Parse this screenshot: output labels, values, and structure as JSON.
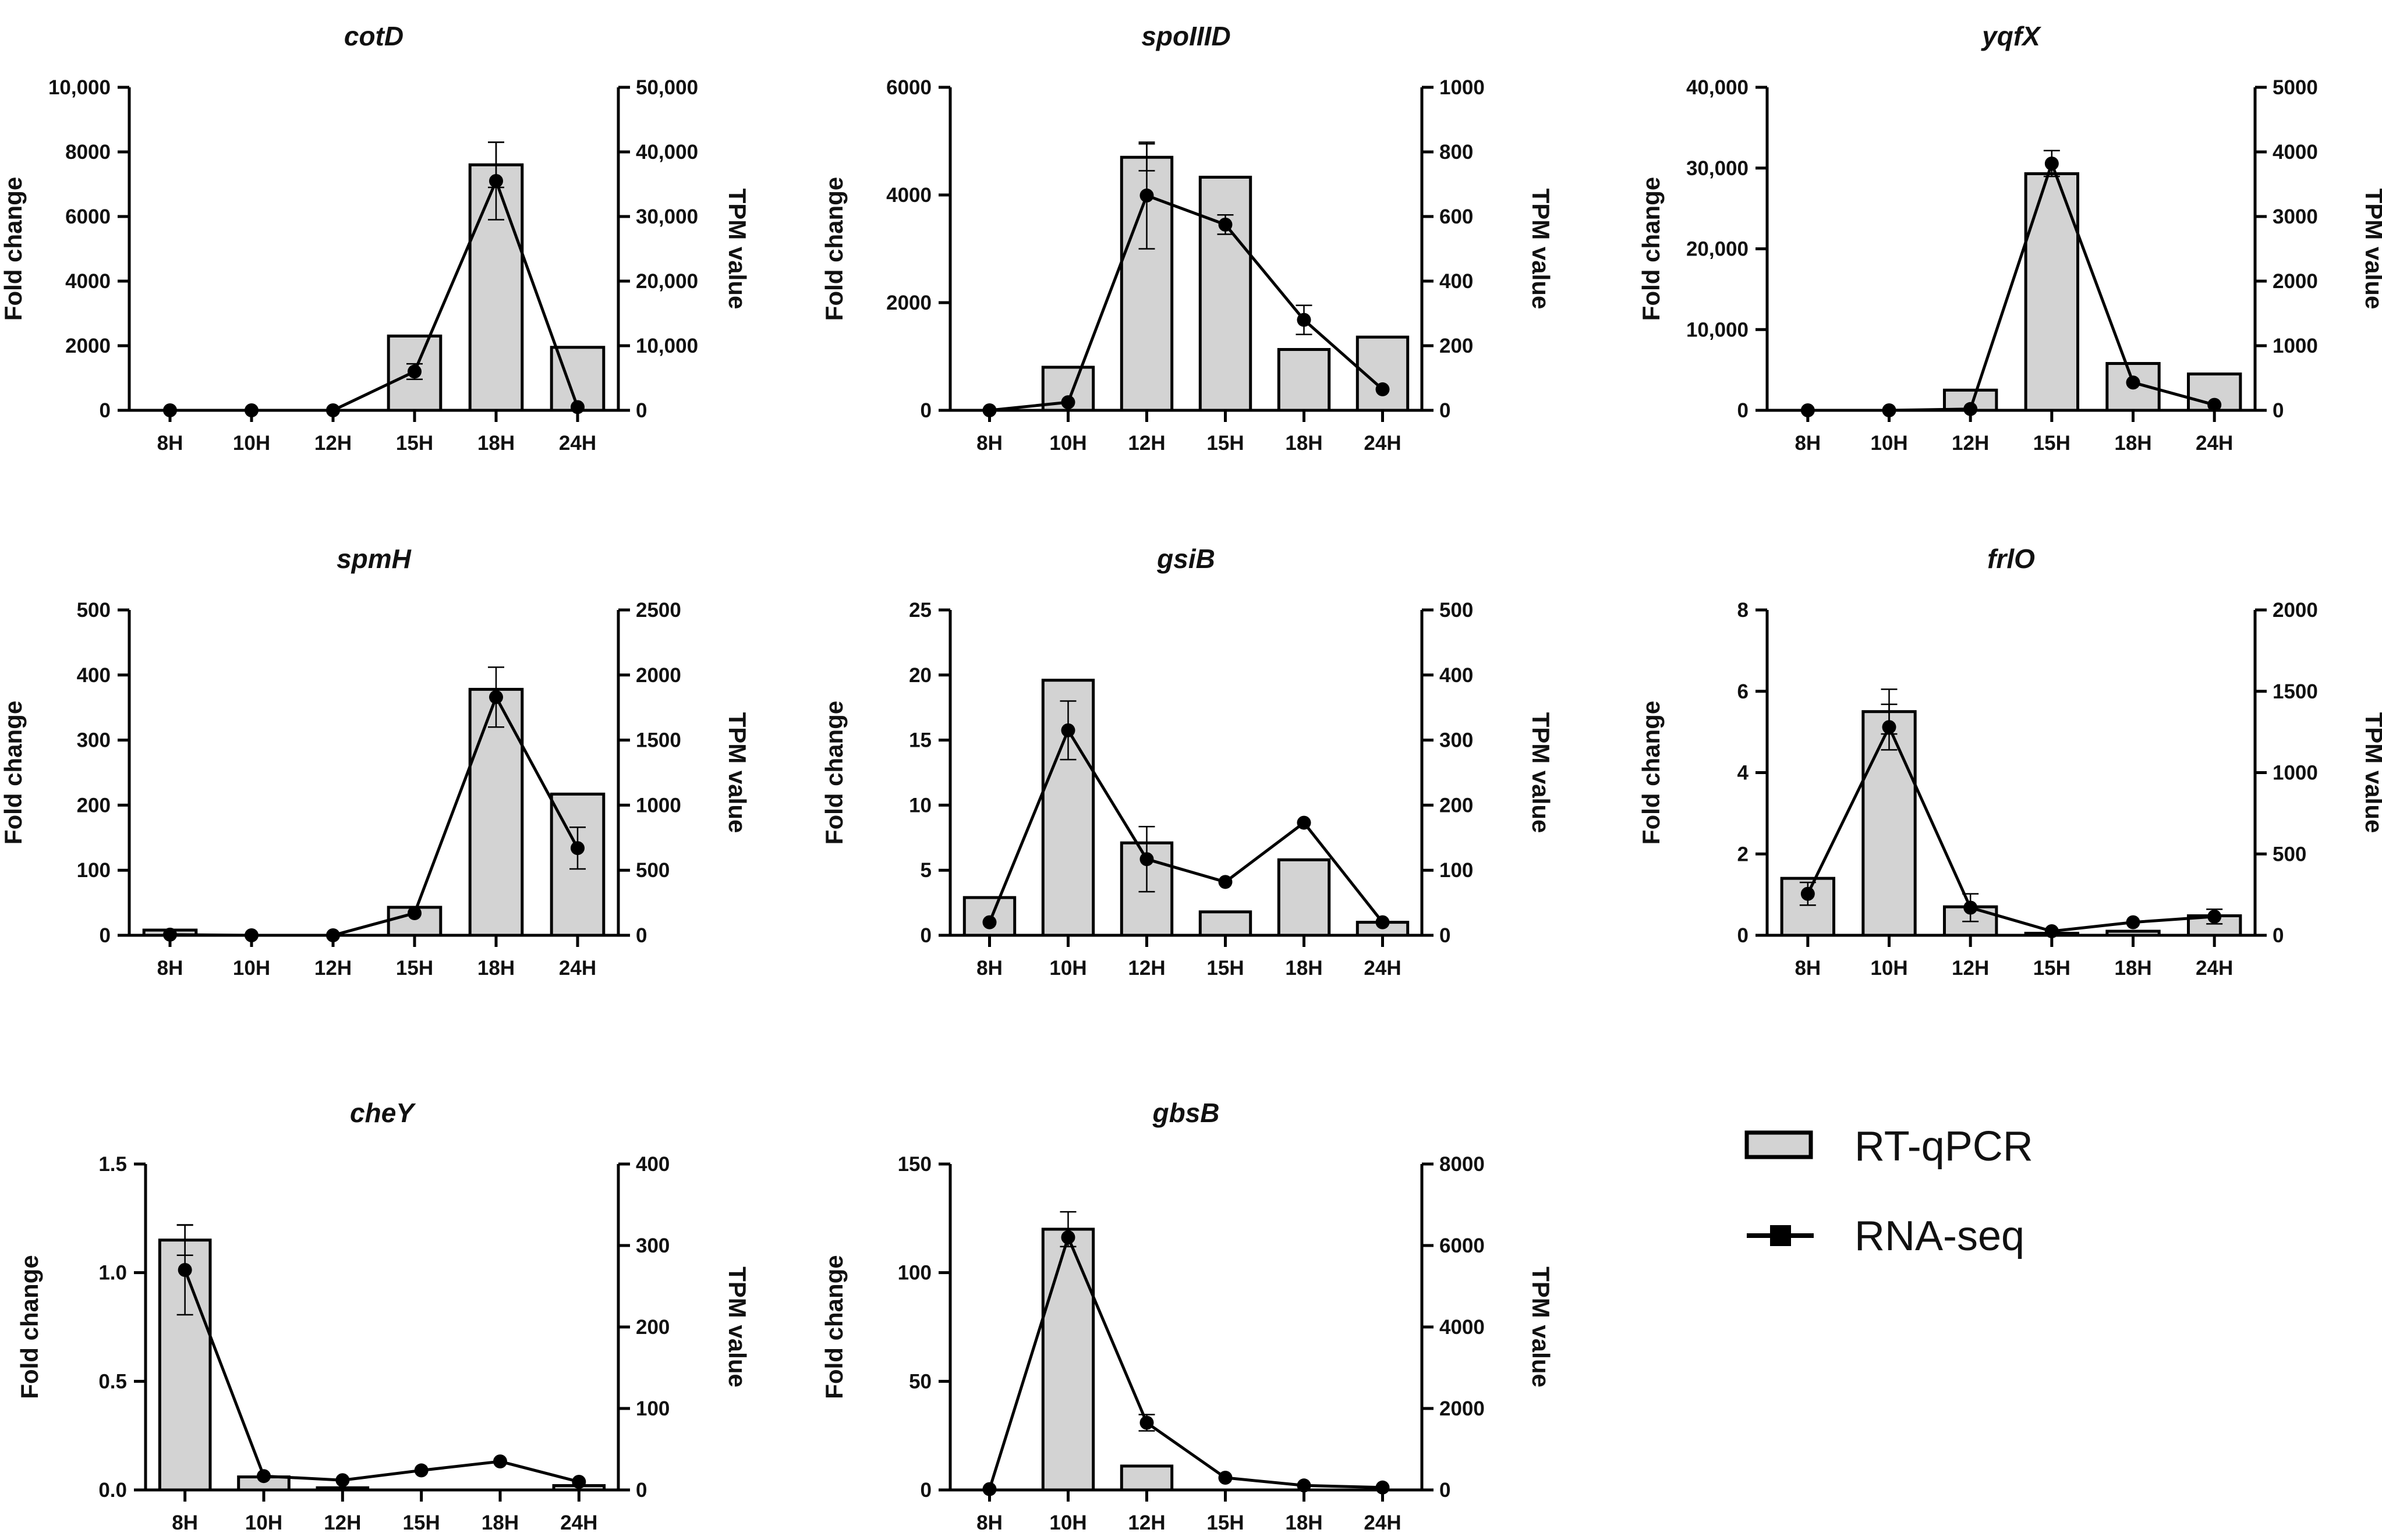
{
  "legend": {
    "bar_label": "RT-qPCR",
    "line_label": "RNA-seq"
  },
  "colors": {
    "bar_fill": "#d3d3d3",
    "stroke": "#000000",
    "line": "#000000"
  },
  "chart_data": [
    {
      "type": "bar+line",
      "title": "cotD",
      "categories": [
        "8H",
        "10H",
        "12H",
        "15H",
        "18H",
        "24H"
      ],
      "xlabel": "",
      "ylabel": "Fold change",
      "y2label": "TPM value",
      "ylim": [
        0,
        10000
      ],
      "yticks": [
        0,
        2000,
        4000,
        6000,
        8000,
        10000
      ],
      "ytick_labels": [
        "0",
        "2000",
        "4000",
        "6000",
        "8000",
        "10,000"
      ],
      "y2lim": [
        0,
        50000
      ],
      "y2ticks": [
        0,
        10000,
        20000,
        30000,
        40000,
        50000
      ],
      "y2tick_labels": [
        "0",
        "10,000",
        "20,000",
        "30,000",
        "40,000",
        "50,000"
      ],
      "series": [
        {
          "name": "RT-qPCR",
          "kind": "bar",
          "axis": "left",
          "values": [
            0,
            0,
            0,
            2300,
            7600,
            1950
          ],
          "errors": [
            0,
            0,
            0,
            0,
            700,
            0
          ]
        },
        {
          "name": "RNA-seq",
          "kind": "line",
          "axis": "right",
          "values": [
            0,
            0,
            0,
            6000,
            35500,
            500
          ],
          "errors": [
            0,
            0,
            0,
            1200,
            6000,
            0
          ]
        }
      ]
    },
    {
      "type": "bar+line",
      "title": "spoIIID",
      "categories": [
        "8H",
        "10H",
        "12H",
        "15H",
        "18H",
        "24H"
      ],
      "xlabel": "",
      "ylabel": "Fold change",
      "y2label": "TPM value",
      "ylim": [
        0,
        6000
      ],
      "yticks": [
        0,
        2000,
        4000,
        6000
      ],
      "ytick_labels": [
        "0",
        "2000",
        "4000",
        "6000"
      ],
      "y2lim": [
        0,
        1000
      ],
      "y2ticks": [
        0,
        200,
        400,
        600,
        800,
        1000
      ],
      "y2tick_labels": [
        "0",
        "200",
        "400",
        "600",
        "800",
        "1000"
      ],
      "series": [
        {
          "name": "RT-qPCR",
          "kind": "bar",
          "axis": "left",
          "values": [
            0,
            800,
            4700,
            4330,
            1130,
            1360
          ],
          "errors": [
            0,
            0,
            250,
            0,
            0,
            0
          ]
        },
        {
          "name": "RNA-seq",
          "kind": "line",
          "axis": "right",
          "values": [
            0,
            25,
            665,
            575,
            280,
            65
          ],
          "errors": [
            0,
            0,
            165,
            30,
            45,
            0
          ]
        }
      ]
    },
    {
      "type": "bar+line",
      "title": "yqfX",
      "categories": [
        "8H",
        "10H",
        "12H",
        "15H",
        "18H",
        "24H"
      ],
      "xlabel": "",
      "ylabel": "Fold change",
      "y2label": "TPM value",
      "ylim": [
        0,
        40000
      ],
      "yticks": [
        0,
        10000,
        20000,
        30000,
        40000
      ],
      "ytick_labels": [
        "0",
        "10,000",
        "20,000",
        "30,000",
        "40,000"
      ],
      "y2lim": [
        0,
        5000
      ],
      "y2ticks": [
        0,
        1000,
        2000,
        3000,
        4000,
        5000
      ],
      "y2tick_labels": [
        "0",
        "1000",
        "2000",
        "3000",
        "4000",
        "5000"
      ],
      "series": [
        {
          "name": "RT-qPCR",
          "kind": "bar",
          "axis": "left",
          "values": [
            0,
            0,
            2500,
            29300,
            5800,
            4500
          ],
          "errors": [
            0,
            0,
            0,
            0,
            0,
            0
          ]
        },
        {
          "name": "RNA-seq",
          "kind": "line",
          "axis": "right",
          "values": [
            0,
            0,
            20,
            3820,
            430,
            85
          ],
          "errors": [
            0,
            0,
            0,
            200,
            0,
            0
          ]
        }
      ]
    },
    {
      "type": "bar+line",
      "title": "spmH",
      "categories": [
        "8H",
        "10H",
        "12H",
        "15H",
        "18H",
        "24H"
      ],
      "xlabel": "",
      "ylabel": "Fold change",
      "y2label": "TPM value",
      "ylim": [
        0,
        500
      ],
      "yticks": [
        0,
        100,
        200,
        300,
        400,
        500
      ],
      "ytick_labels": [
        "0",
        "100",
        "200",
        "300",
        "400",
        "500"
      ],
      "y2lim": [
        0,
        2500
      ],
      "y2ticks": [
        0,
        500,
        1000,
        1500,
        2000,
        2500
      ],
      "y2tick_labels": [
        "0",
        "500",
        "1000",
        "1500",
        "2000",
        "2500"
      ],
      "series": [
        {
          "name": "RT-qPCR",
          "kind": "bar",
          "axis": "left",
          "values": [
            8,
            0,
            0,
            43,
            378,
            217
          ],
          "errors": [
            0,
            0,
            0,
            0,
            0,
            0
          ]
        },
        {
          "name": "RNA-seq",
          "kind": "line",
          "axis": "right",
          "values": [
            5,
            0,
            0,
            170,
            1830,
            670
          ],
          "errors": [
            0,
            0,
            0,
            0,
            230,
            160
          ]
        }
      ]
    },
    {
      "type": "bar+line",
      "title": "gsiB",
      "categories": [
        "8H",
        "10H",
        "12H",
        "15H",
        "18H",
        "24H"
      ],
      "xlabel": "",
      "ylabel": "Fold change",
      "y2label": "TPM value",
      "ylim": [
        0,
        25
      ],
      "yticks": [
        0,
        5,
        10,
        15,
        20,
        25
      ],
      "ytick_labels": [
        "0",
        "5",
        "10",
        "15",
        "20",
        "25"
      ],
      "y2lim": [
        0,
        500
      ],
      "y2ticks": [
        0,
        100,
        200,
        300,
        400,
        500
      ],
      "y2tick_labels": [
        "0",
        "100",
        "200",
        "300",
        "400",
        "500"
      ],
      "series": [
        {
          "name": "RT-qPCR",
          "kind": "bar",
          "axis": "left",
          "values": [
            2.9,
            19.6,
            7.1,
            1.8,
            5.8,
            1.0
          ],
          "errors": [
            0,
            0,
            0,
            0,
            0,
            0
          ]
        },
        {
          "name": "RNA-seq",
          "kind": "line",
          "axis": "right",
          "values": [
            20,
            315,
            117,
            82,
            173,
            20
          ],
          "errors": [
            0,
            45,
            50,
            0,
            0,
            0
          ]
        }
      ]
    },
    {
      "type": "bar+line",
      "title": "frlO",
      "categories": [
        "8H",
        "10H",
        "12H",
        "15H",
        "18H",
        "24H"
      ],
      "xlabel": "",
      "ylabel": "Fold change",
      "y2label": "TPM value",
      "ylim": [
        0,
        8
      ],
      "yticks": [
        0,
        2,
        4,
        6,
        8
      ],
      "ytick_labels": [
        "0",
        "2",
        "4",
        "6",
        "8"
      ],
      "y2lim": [
        0,
        2000
      ],
      "y2ticks": [
        0,
        500,
        1000,
        1500,
        2000
      ],
      "y2tick_labels": [
        "0",
        "500",
        "1000",
        "1500",
        "2000"
      ],
      "series": [
        {
          "name": "RT-qPCR",
          "kind": "bar",
          "axis": "left",
          "values": [
            1.4,
            5.5,
            0.7,
            0.05,
            0.1,
            0.48
          ],
          "errors": [
            0,
            0.55,
            0,
            0,
            0,
            0
          ]
        },
        {
          "name": "RNA-seq",
          "kind": "line",
          "axis": "right",
          "values": [
            255,
            1280,
            170,
            25,
            80,
            115
          ],
          "errors": [
            70,
            140,
            85,
            0,
            0,
            45
          ]
        }
      ]
    },
    {
      "type": "bar+line",
      "title": "cheY",
      "categories": [
        "8H",
        "10H",
        "12H",
        "15H",
        "18H",
        "24H"
      ],
      "xlabel": "",
      "ylabel": "Fold change",
      "y2label": "TPM value",
      "ylim": [
        0,
        1.5
      ],
      "yticks": [
        0,
        0.5,
        1.0,
        1.5
      ],
      "ytick_labels": [
        "0.0",
        "0.5",
        "1.0",
        "1.5"
      ],
      "y2lim": [
        0,
        400
      ],
      "y2ticks": [
        0,
        100,
        200,
        300,
        400
      ],
      "y2tick_labels": [
        "0",
        "100",
        "200",
        "300",
        "400"
      ],
      "series": [
        {
          "name": "RT-qPCR",
          "kind": "bar",
          "axis": "left",
          "values": [
            1.15,
            0.06,
            0.01,
            0,
            0,
            0.02
          ],
          "errors": [
            0.07,
            0,
            0,
            0,
            0,
            0
          ]
        },
        {
          "name": "RNA-seq",
          "kind": "line",
          "axis": "right",
          "values": [
            270,
            17,
            12,
            24,
            35,
            10
          ],
          "errors": [
            55,
            0,
            0,
            0,
            0,
            0
          ]
        }
      ]
    },
    {
      "type": "bar+line",
      "title": "gbsB",
      "categories": [
        "8H",
        "10H",
        "12H",
        "15H",
        "18H",
        "24H"
      ],
      "xlabel": "",
      "ylabel": "Fold change",
      "y2label": "TPM value",
      "ylim": [
        0,
        150
      ],
      "yticks": [
        0,
        50,
        100,
        150
      ],
      "ytick_labels": [
        "0",
        "50",
        "100",
        "150"
      ],
      "y2lim": [
        0,
        8000
      ],
      "y2ticks": [
        0,
        2000,
        4000,
        6000,
        8000
      ],
      "y2tick_labels": [
        "0",
        "2000",
        "4000",
        "6000",
        "8000"
      ],
      "series": [
        {
          "name": "RT-qPCR",
          "kind": "bar",
          "axis": "left",
          "values": [
            0,
            120,
            11,
            0,
            0,
            0
          ],
          "errors": [
            0,
            8,
            0,
            0,
            0,
            0
          ]
        },
        {
          "name": "RNA-seq",
          "kind": "line",
          "axis": "right",
          "values": [
            20,
            6200,
            1650,
            300,
            110,
            60
          ],
          "errors": [
            0,
            0,
            200,
            0,
            0,
            0
          ]
        }
      ]
    }
  ]
}
